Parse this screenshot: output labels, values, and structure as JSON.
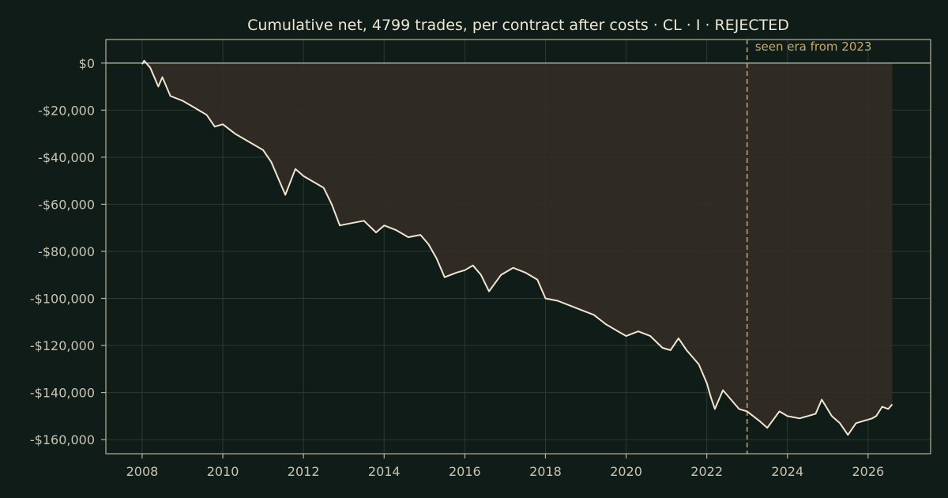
{
  "chart_data": {
    "type": "line",
    "title": "Cumulative net, 4799 trades, per contract after costs  ·  CL · I · REJECTED",
    "xlabel": "",
    "ylabel": "",
    "x_ticks": [
      "2008",
      "2010",
      "2012",
      "2014",
      "2016",
      "2018",
      "2020",
      "2022",
      "2024",
      "2026"
    ],
    "y_ticks": [
      "$0",
      "-$20,000",
      "-$40,000",
      "-$60,000",
      "-$80,000",
      "-$100,000",
      "-$120,000",
      "-$140,000",
      "-$160,000"
    ],
    "y_tick_values": [
      0,
      -20000,
      -40000,
      -60000,
      -80000,
      -100000,
      -120000,
      -140000,
      -160000
    ],
    "x_tick_values": [
      2008,
      2010,
      2012,
      2014,
      2016,
      2018,
      2020,
      2022,
      2024,
      2026
    ],
    "xlim": [
      2007.1,
      2027.55
    ],
    "ylim": [
      -166000,
      10000
    ],
    "grid": true,
    "drawdown_fill": true,
    "zero_line": true,
    "seen_era": {
      "x": 2023.0,
      "label": "seen era from 2023"
    },
    "series": [
      {
        "x": [
          2008.0,
          2008.05,
          2008.2,
          2008.4,
          2008.5,
          2008.7,
          2009.0,
          2009.3,
          2009.6,
          2009.8,
          2010.0,
          2010.3,
          2010.6,
          2011.0,
          2011.2,
          2011.4,
          2011.55,
          2011.8,
          2012.0,
          2012.3,
          2012.5,
          2012.7,
          2012.9,
          2013.2,
          2013.5,
          2013.8,
          2014.0,
          2014.3,
          2014.6,
          2014.9,
          2015.1,
          2015.3,
          2015.5,
          2015.8,
          2016.0,
          2016.2,
          2016.4,
          2016.6,
          2016.9,
          2017.2,
          2017.5,
          2017.8,
          2018.0,
          2018.3,
          2018.6,
          2018.9,
          2019.2,
          2019.5,
          2019.8,
          2020.0,
          2020.3,
          2020.6,
          2020.9,
          2021.1,
          2021.3,
          2021.5,
          2021.8,
          2022.0,
          2022.1,
          2022.2,
          2022.4,
          2022.6,
          2022.8,
          2023.0,
          2023.3,
          2023.5,
          2023.8,
          2024.0,
          2024.3,
          2024.5,
          2024.7,
          2024.85,
          2025.1,
          2025.3,
          2025.5,
          2025.7,
          2025.9,
          2026.1,
          2026.2,
          2026.35,
          2026.5,
          2026.6
        ],
        "y": [
          -500,
          1000,
          -2000,
          -10000,
          -6000,
          -14000,
          -16000,
          -19000,
          -22000,
          -27000,
          -26000,
          -30000,
          -33000,
          -37000,
          -42000,
          -50000,
          -56000,
          -45000,
          -48000,
          -51000,
          -53000,
          -60000,
          -69000,
          -68000,
          -67000,
          -72000,
          -69000,
          -71000,
          -74000,
          -73000,
          -77000,
          -83000,
          -91000,
          -89000,
          -88000,
          -86000,
          -90000,
          -97000,
          -90000,
          -87000,
          -89000,
          -92000,
          -100000,
          -101000,
          -103000,
          -105000,
          -107000,
          -111000,
          -114000,
          -116000,
          -114000,
          -116000,
          -121000,
          -122000,
          -117000,
          -122000,
          -128000,
          -136000,
          -142000,
          -147000,
          -139000,
          -143000,
          -147000,
          -148000,
          -152000,
          -155000,
          -148000,
          -150000,
          -151000,
          -150000,
          -149000,
          -143000,
          -150000,
          -153000,
          -158000,
          -153000,
          -152000,
          -151000,
          -150000,
          -146000,
          -147000,
          -145000
        ]
      }
    ]
  },
  "colors": {
    "background": "#0f1c17",
    "line": "#efe6d2",
    "fill": "#332c26",
    "grid": "#2b3a33",
    "spine": "#b8b39f",
    "annotation": "#c9a86a"
  }
}
